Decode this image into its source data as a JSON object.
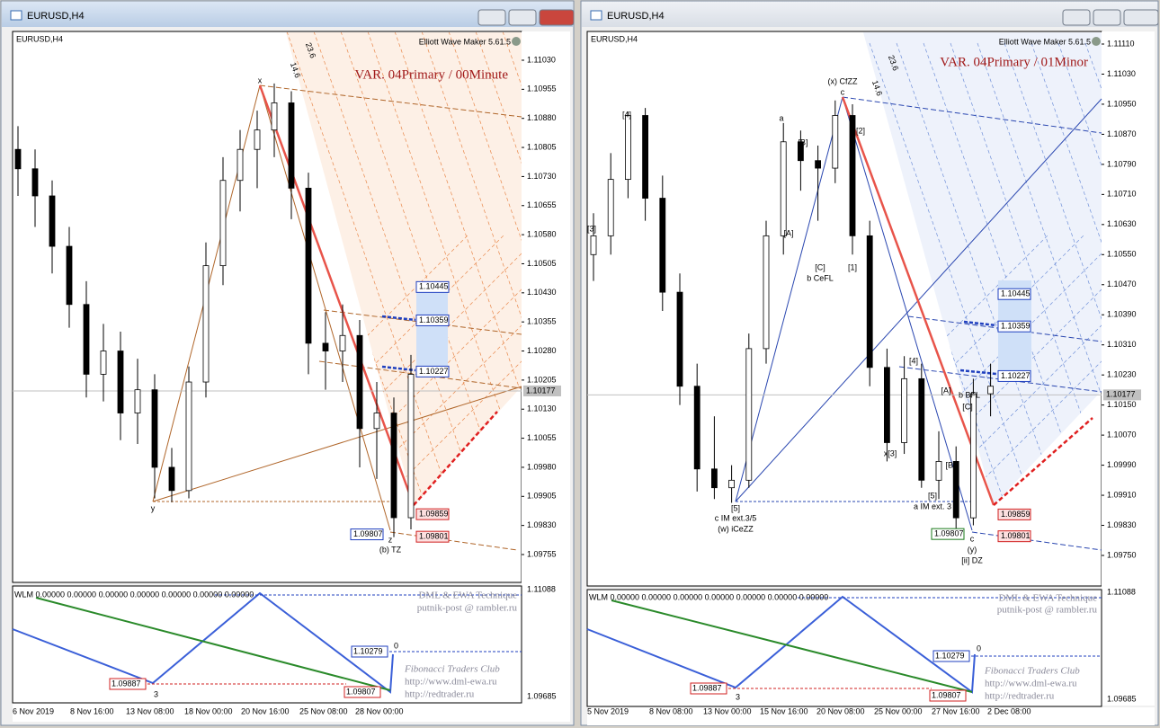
{
  "windows": [
    {
      "title": "EURUSD,H4",
      "header": "EURUSD,H4",
      "ewm": "Elliott Wave Maker 5.61.5",
      "variant": "VAR. 04Primary / 00Minute",
      "price_ticks": [
        {
          "value": 1.1103,
          "label": "1.11030"
        },
        {
          "value": 1.10955,
          "label": "1.10955"
        },
        {
          "value": 1.1088,
          "label": "1.10880"
        },
        {
          "value": 1.10805,
          "label": "1.10805"
        },
        {
          "value": 1.1073,
          "label": "1.10730"
        },
        {
          "value": 1.10655,
          "label": "1.10655"
        },
        {
          "value": 1.1058,
          "label": "1.10580"
        },
        {
          "value": 1.10505,
          "label": "1.10505"
        },
        {
          "value": 1.1043,
          "label": "1.10430"
        },
        {
          "value": 1.10355,
          "label": "1.10355"
        },
        {
          "value": 1.1028,
          "label": "1.10280"
        },
        {
          "value": 1.10205,
          "label": "1.10205"
        },
        {
          "value": 1.1013,
          "label": "1.10130"
        },
        {
          "value": 1.10055,
          "label": "1.10055"
        },
        {
          "value": 1.0998,
          "label": "1.09980"
        },
        {
          "value": 1.09905,
          "label": "1.09905"
        },
        {
          "value": 1.0983,
          "label": "1.09830"
        },
        {
          "value": 1.09755,
          "label": "1.09755"
        }
      ],
      "current_price": {
        "value": 1.10177,
        "label": "1.10177"
      },
      "levels": [
        {
          "value": 1.10445,
          "label": "1.10445"
        },
        {
          "value": 1.10359,
          "label": "1.10359"
        },
        {
          "value": 1.10227,
          "label": "1.10227"
        },
        {
          "value": 1.09859,
          "label": "1.09859"
        },
        {
          "value": 1.09801,
          "label": "1.09801"
        },
        {
          "value": 1.09807,
          "label": "1.09807"
        }
      ],
      "candles": [
        [
          1.108,
          1.1086,
          1.1068,
          1.1075
        ],
        [
          1.1075,
          1.108,
          1.106,
          1.1068
        ],
        [
          1.1068,
          1.1072,
          1.1048,
          1.1055
        ],
        [
          1.1055,
          1.106,
          1.1034,
          1.104
        ],
        [
          1.104,
          1.1046,
          1.1016,
          1.1022
        ],
        [
          1.1022,
          1.1035,
          1.1015,
          1.1028
        ],
        [
          1.1028,
          1.1033,
          1.1005,
          1.1012
        ],
        [
          1.1012,
          1.1026,
          1.1004,
          1.1018
        ],
        [
          1.1018,
          1.1022,
          1.099,
          1.0998
        ],
        [
          1.0998,
          1.1003,
          1.0989,
          1.0992
        ],
        [
          1.0992,
          1.1024,
          1.099,
          1.102
        ],
        [
          1.102,
          1.1056,
          1.1016,
          1.105
        ],
        [
          1.105,
          1.1078,
          1.1045,
          1.1072
        ],
        [
          1.1072,
          1.1085,
          1.1064,
          1.108
        ],
        [
          1.108,
          1.109,
          1.107,
          1.1085
        ],
        [
          1.1085,
          1.1097,
          1.1078,
          1.1092
        ],
        [
          1.1092,
          1.1095,
          1.1062,
          1.107
        ],
        [
          1.107,
          1.1074,
          1.1022,
          1.103
        ],
        [
          1.103,
          1.1038,
          1.1018,
          1.1028
        ],
        [
          1.1028,
          1.104,
          1.102,
          1.1032
        ],
        [
          1.1032,
          1.1036,
          1.0998,
          1.1008
        ],
        [
          1.1008,
          1.102,
          1.0995,
          1.1012
        ],
        [
          1.1012,
          1.1016,
          1.098,
          1.0985
        ],
        [
          1.0985,
          1.1027,
          1.0982,
          1.1022
        ]
      ],
      "time_labels": [
        "6 Nov 2019",
        "8 Nov 16:00",
        "13 Nov 08:00",
        "18 Nov 00:00",
        "20 Nov 16:00",
        "25 Nov 08:00",
        "28 Nov 00:00"
      ],
      "wave_labels": [
        "x",
        "y",
        "z",
        "(b) TZ"
      ],
      "fan_labels": [
        "23.6",
        "14.6"
      ],
      "indicator": {
        "text": "WLM 0.00000 0.00000 0.00000 0.00000 0.00000 0.00000 0.00000",
        "scale": [
          "1.11088",
          "1.09685"
        ],
        "labels": [
          "1.10279",
          "1.09887",
          "1.09807",
          "3",
          "0"
        ]
      },
      "watermark": [
        "DML & EWA Technique",
        "putnik-post @ rambler.ru",
        "Fibonacci   Traders   Club",
        "http://www.dml-ewa.ru",
        "http://redtrader.ru"
      ]
    },
    {
      "title": "EURUSD,H4",
      "header": "EURUSD,H4",
      "ewm": "Elliott Wave Maker 5.61.5",
      "variant": "VAR. 04Primary / 01Minor",
      "price_ticks": [
        {
          "value": 1.1111,
          "label": "1.11110"
        },
        {
          "value": 1.1103,
          "label": "1.11030"
        },
        {
          "value": 1.1095,
          "label": "1.10950"
        },
        {
          "value": 1.1087,
          "label": "1.10870"
        },
        {
          "value": 1.1079,
          "label": "1.10790"
        },
        {
          "value": 1.1071,
          "label": "1.10710"
        },
        {
          "value": 1.1063,
          "label": "1.10630"
        },
        {
          "value": 1.1055,
          "label": "1.10550"
        },
        {
          "value": 1.1047,
          "label": "1.10470"
        },
        {
          "value": 1.1039,
          "label": "1.10390"
        },
        {
          "value": 1.1031,
          "label": "1.10310"
        },
        {
          "value": 1.1023,
          "label": "1.10230"
        },
        {
          "value": 1.1015,
          "label": "1.10150"
        },
        {
          "value": 1.1007,
          "label": "1.10070"
        },
        {
          "value": 1.0999,
          "label": "1.09990"
        },
        {
          "value": 1.0991,
          "label": "1.09910"
        },
        {
          "value": 1.0983,
          "label": "1.09830"
        },
        {
          "value": 1.0975,
          "label": "1.09750"
        }
      ],
      "current_price": {
        "value": 1.10177,
        "label": "1.10177"
      },
      "levels": [
        {
          "value": 1.10445,
          "label": "1.10445"
        },
        {
          "value": 1.10359,
          "label": "1.10359"
        },
        {
          "value": 1.10227,
          "label": "1.10227"
        },
        {
          "value": 1.09859,
          "label": "1.09859"
        },
        {
          "value": 1.09801,
          "label": "1.09801"
        },
        {
          "value": 1.09807,
          "label": "1.09807"
        }
      ],
      "candles": [
        [
          1.1055,
          1.1066,
          1.1048,
          1.106
        ],
        [
          1.106,
          1.1082,
          1.1055,
          1.1075
        ],
        [
          1.1075,
          1.1093,
          1.107,
          1.1092
        ],
        [
          1.1092,
          1.1094,
          1.1064,
          1.107
        ],
        [
          1.107,
          1.1076,
          1.104,
          1.1045
        ],
        [
          1.1045,
          1.105,
          1.1015,
          1.102
        ],
        [
          1.102,
          1.1026,
          1.0992,
          1.0998
        ],
        [
          1.0998,
          1.1012,
          1.099,
          1.0993
        ],
        [
          1.0993,
          1.0999,
          1.0989,
          1.0995
        ],
        [
          1.0995,
          1.1034,
          1.0993,
          1.103
        ],
        [
          1.103,
          1.1064,
          1.1026,
          1.106
        ],
        [
          1.106,
          1.109,
          1.1055,
          1.1085
        ],
        [
          1.1085,
          1.1088,
          1.1072,
          1.108
        ],
        [
          1.108,
          1.1084,
          1.1064,
          1.1078
        ],
        [
          1.1078,
          1.1096,
          1.1074,
          1.1092
        ],
        [
          1.1092,
          1.1095,
          1.1055,
          1.106
        ],
        [
          1.106,
          1.1064,
          1.102,
          1.1025
        ],
        [
          1.1025,
          1.103,
          1.1,
          1.1005
        ],
        [
          1.1005,
          1.1028,
          1.1002,
          1.1022
        ],
        [
          1.1022,
          1.1026,
          1.0993,
          1.0995
        ],
        [
          1.0995,
          1.1008,
          1.099,
          1.1
        ],
        [
          1.1,
          1.1004,
          1.0981,
          1.0985
        ],
        [
          1.0985,
          1.1022,
          1.0983,
          1.1018
        ],
        [
          1.1018,
          1.1026,
          1.1012,
          1.102
        ]
      ],
      "time_labels": [
        "5 Nov 2019",
        "8 Nov 08:00",
        "13 Nov 00:00",
        "15 Nov 16:00",
        "20 Nov 08:00",
        "25 Nov 00:00",
        "27 Nov 16:00",
        "2 Dec 08:00"
      ],
      "wave_labels": [
        "(x) CfZZ",
        "c",
        "[4]",
        "[3]",
        "a",
        "[B]",
        "[A]",
        "[C]",
        "b CeFL",
        "[2]",
        "[1]",
        "[5]",
        "c IM ext.3/5",
        "(w) iCeZZ",
        "[4]",
        "x[3]",
        "[A]",
        "b BFL",
        "[C]",
        "[B]",
        "[5]",
        "a IM ext. 3",
        "c",
        "(y)",
        "[ii] DZ"
      ],
      "fan_labels": [
        "23.6",
        "14.6"
      ],
      "indicator": {
        "text": "WLM 0.00000 0.00000 0.00000 0.00000 0.00000 0.00000 0.00000",
        "scale": [
          "1.11088",
          "1.09685"
        ],
        "labels": [
          "1.10279",
          "1.09887",
          "1.09807",
          "3",
          "0"
        ]
      },
      "watermark": [
        "DML & EWA Technique",
        "putnik-post @ rambler.ru",
        "Fibonacci   Traders   Club",
        "http://www.dml-ewa.ru",
        "http://redtrader.ru"
      ]
    }
  ]
}
